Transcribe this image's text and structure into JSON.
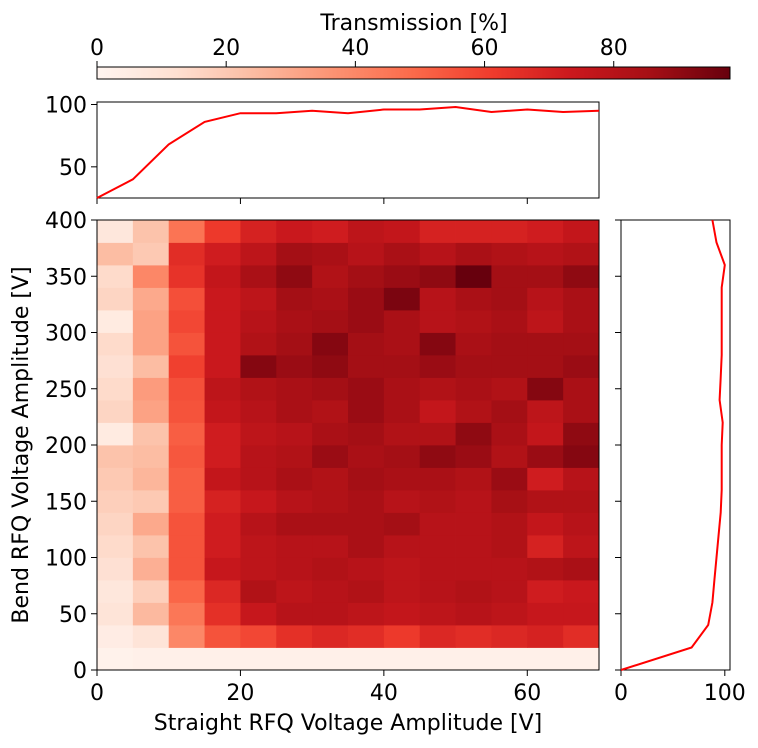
{
  "colorbar": {
    "label": "Transmission [%]",
    "range": [
      0,
      98
    ],
    "ticks": [
      0,
      20,
      40,
      60,
      80
    ],
    "colormap": "Reds",
    "stops": [
      "#fff5f0",
      "#fee0d2",
      "#fcbba1",
      "#fc9272",
      "#fb6a4a",
      "#ef3b2c",
      "#cb181d",
      "#a50f15",
      "#67000d"
    ]
  },
  "line_color": "#ff0000",
  "axis_color": "#000000",
  "chart_data": [
    {
      "type": "heatmap",
      "xlabel": "Straight RFQ Voltage Amplitude [V]",
      "ylabel": "Bend RFQ Voltage Amplitude [V]",
      "xlim": [
        0,
        70
      ],
      "ylim": [
        0,
        400
      ],
      "xticks": [
        0,
        20,
        40,
        60
      ],
      "yticks": [
        0,
        50,
        100,
        150,
        200,
        250,
        300,
        350,
        400
      ],
      "x_edges": [
        0,
        5,
        10,
        15,
        20,
        25,
        30,
        35,
        40,
        45,
        50,
        55,
        60,
        65,
        70
      ],
      "y_edges": [
        0,
        20,
        40,
        60,
        80,
        100,
        120,
        140,
        160,
        180,
        200,
        220,
        240,
        260,
        280,
        300,
        320,
        340,
        360,
        380,
        400
      ],
      "values": [
        [
          2,
          3,
          3,
          3,
          3,
          3,
          3,
          3,
          3,
          3,
          3,
          3,
          3,
          3
        ],
        [
          5,
          10,
          40,
          55,
          58,
          65,
          68,
          66,
          62,
          68,
          66,
          68,
          70,
          66
        ],
        [
          10,
          25,
          45,
          65,
          75,
          80,
          80,
          78,
          76,
          78,
          80,
          78,
          75,
          75
        ],
        [
          8,
          18,
          50,
          68,
          82,
          78,
          80,
          82,
          78,
          80,
          82,
          80,
          72,
          74
        ],
        [
          12,
          28,
          55,
          75,
          78,
          80,
          82,
          80,
          78,
          80,
          80,
          80,
          82,
          84
        ],
        [
          14,
          22,
          55,
          72,
          78,
          80,
          80,
          84,
          80,
          80,
          80,
          82,
          70,
          78
        ],
        [
          16,
          30,
          55,
          72,
          80,
          84,
          84,
          84,
          86,
          80,
          80,
          82,
          76,
          80
        ],
        [
          18,
          20,
          52,
          70,
          75,
          80,
          82,
          84,
          80,
          82,
          80,
          85,
          82,
          82
        ],
        [
          20,
          26,
          52,
          76,
          80,
          84,
          82,
          86,
          84,
          84,
          82,
          88,
          72,
          80
        ],
        [
          22,
          24,
          54,
          72,
          80,
          82,
          88,
          84,
          86,
          90,
          88,
          82,
          88,
          92
        ],
        [
          6,
          22,
          52,
          72,
          78,
          80,
          84,
          86,
          82,
          82,
          90,
          84,
          76,
          90
        ],
        [
          16,
          32,
          55,
          76,
          80,
          84,
          82,
          88,
          84,
          76,
          82,
          86,
          78,
          84
        ],
        [
          14,
          34,
          56,
          78,
          82,
          84,
          86,
          88,
          84,
          82,
          84,
          82,
          92,
          84
        ],
        [
          12,
          24,
          60,
          74,
          92,
          88,
          90,
          86,
          86,
          88,
          86,
          86,
          86,
          88
        ],
        [
          14,
          32,
          55,
          74,
          82,
          86,
          92,
          86,
          84,
          92,
          84,
          86,
          86,
          86
        ],
        [
          6,
          32,
          58,
          74,
          80,
          84,
          86,
          88,
          84,
          80,
          82,
          84,
          78,
          84
        ],
        [
          16,
          30,
          56,
          74,
          78,
          86,
          84,
          88,
          94,
          80,
          84,
          86,
          80,
          84
        ],
        [
          14,
          40,
          64,
          76,
          84,
          90,
          82,
          86,
          88,
          90,
          98,
          86,
          86,
          90
        ],
        [
          24,
          20,
          66,
          72,
          78,
          86,
          84,
          80,
          84,
          80,
          84,
          82,
          80,
          82
        ],
        [
          8,
          22,
          46,
          62,
          70,
          74,
          72,
          78,
          76,
          70,
          70,
          70,
          72,
          76
        ]
      ]
    },
    {
      "type": "line",
      "x": [
        0,
        5,
        10,
        15,
        20,
        25,
        30,
        35,
        40,
        45,
        50,
        55,
        60,
        65,
        70
      ],
      "y": [
        25,
        40,
        68,
        86,
        93,
        93,
        95,
        93,
        96,
        96,
        98,
        94,
        96,
        94,
        95
      ],
      "xlim": [
        0,
        70
      ],
      "ylim": [
        25,
        102
      ],
      "yticks": [
        50,
        100
      ]
    },
    {
      "type": "line",
      "x": [
        0,
        68,
        84,
        88,
        90,
        92,
        94,
        96,
        97,
        97,
        97,
        98,
        95,
        96,
        97,
        97,
        97,
        97,
        100,
        92,
        88
      ],
      "y": [
        0,
        20,
        40,
        60,
        80,
        100,
        120,
        140,
        160,
        180,
        200,
        220,
        240,
        260,
        280,
        300,
        320,
        340,
        360,
        380,
        400
      ],
      "xlim": [
        0,
        105
      ],
      "ylim": [
        0,
        400
      ],
      "xticks": [
        0,
        100
      ]
    }
  ]
}
